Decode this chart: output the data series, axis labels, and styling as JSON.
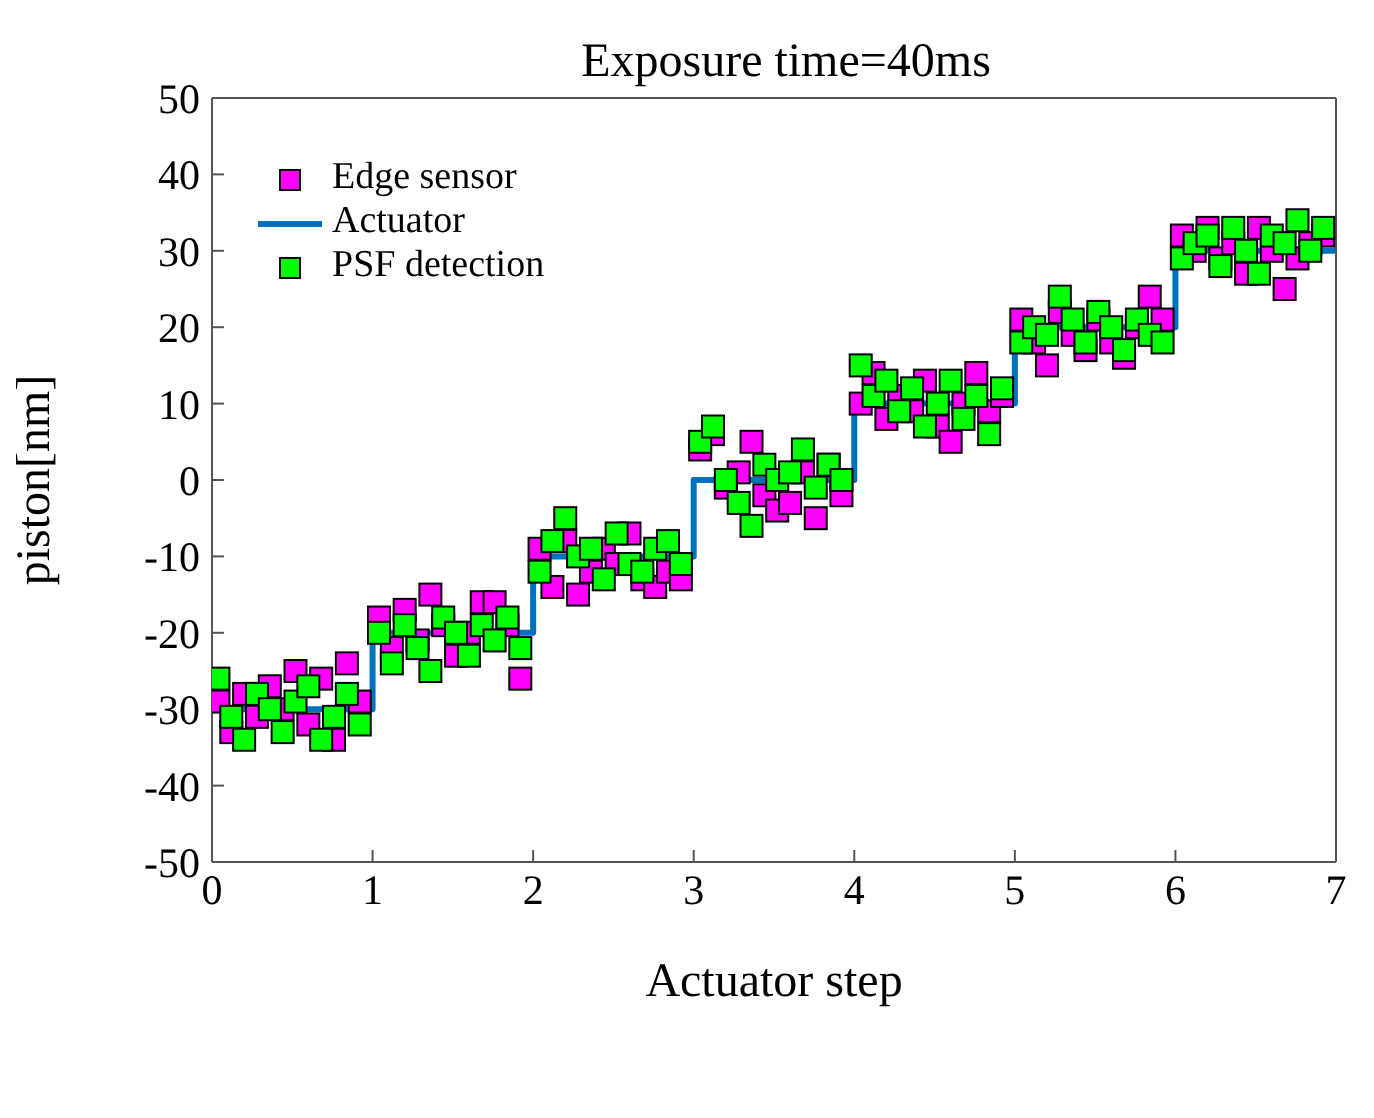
{
  "chart_data": {
    "type": "scatter",
    "title": "Exposure time=40ms",
    "xlabel": "Actuator step",
    "ylabel": "piston[nm]",
    "xlim": [
      0,
      7
    ],
    "xticks": [
      0,
      1,
      2,
      3,
      4,
      5,
      6,
      7
    ],
    "ylim": [
      -50,
      50
    ],
    "yticks": [
      -50,
      -40,
      -30,
      -20,
      -10,
      0,
      10,
      20,
      30,
      40,
      50
    ],
    "legend": "top left",
    "series": [
      {
        "name": "Edge sensor",
        "marker": "square",
        "color": "#ff00ff",
        "values": [
          -29,
          -33,
          -28,
          -31,
          -27,
          -30,
          -25,
          -32,
          -26,
          -34,
          -24,
          -29,
          -18,
          -22,
          -17,
          -21,
          -15,
          -19,
          -23,
          -20,
          -16,
          -16,
          -19,
          -26,
          -9,
          -14,
          -8,
          -15,
          -12,
          -9,
          -11,
          -7,
          -13,
          -14,
          -12,
          -13,
          4,
          6,
          -1,
          1,
          5,
          -2,
          -4,
          -3,
          1,
          -5,
          2,
          -2,
          10,
          14,
          8,
          11,
          9,
          13,
          7,
          5,
          10,
          14,
          9,
          11,
          21,
          18,
          15,
          22,
          19,
          17,
          21,
          18,
          16,
          20,
          24,
          21,
          32,
          30,
          33,
          29,
          31,
          27,
          33,
          30,
          25,
          29,
          31,
          32
        ]
      },
      {
        "name": "Actuator",
        "type": "step",
        "marker": "none",
        "color": "#0072bd",
        "x": [
          0,
          1,
          2,
          3,
          4,
          5,
          6,
          7
        ],
        "values": [
          -30,
          -20,
          -10,
          0,
          10,
          20,
          30,
          30
        ]
      },
      {
        "name": "PSF detection",
        "marker": "square",
        "color": "#00ff00",
        "values": [
          -26,
          -31,
          -34,
          -28,
          -30,
          -33,
          -29,
          -27,
          -34,
          -31,
          -28,
          -32,
          -20,
          -24,
          -19,
          -22,
          -25,
          -18,
          -20,
          -23,
          -19,
          -21,
          -18,
          -22,
          -12,
          -8,
          -5,
          -10,
          -9,
          -13,
          -7,
          -11,
          -12,
          -9,
          -8,
          -11,
          5,
          7,
          0,
          -3,
          -6,
          2,
          0,
          1,
          4,
          -1,
          2,
          0,
          15,
          11,
          13,
          9,
          12,
          7,
          10,
          13,
          8,
          11,
          6,
          12,
          18,
          20,
          19,
          24,
          21,
          18,
          22,
          20,
          17,
          21,
          19,
          18,
          29,
          31,
          32,
          28,
          33,
          30,
          27,
          32,
          31,
          34,
          30,
          33
        ]
      }
    ],
    "x": [
      0.04,
      0.12,
      0.2,
      0.28,
      0.36,
      0.44,
      0.52,
      0.6,
      0.68,
      0.76,
      0.84,
      0.92,
      1.04,
      1.12,
      1.2,
      1.28,
      1.36,
      1.44,
      1.52,
      1.6,
      1.68,
      1.76,
      1.84,
      1.92,
      2.04,
      2.12,
      2.2,
      2.28,
      2.36,
      2.44,
      2.52,
      2.6,
      2.68,
      2.76,
      2.84,
      2.92,
      3.04,
      3.12,
      3.2,
      3.28,
      3.36,
      3.44,
      3.52,
      3.6,
      3.68,
      3.76,
      3.84,
      3.92,
      4.04,
      4.12,
      4.2,
      4.28,
      4.36,
      4.44,
      4.52,
      4.6,
      4.68,
      4.76,
      4.84,
      4.92,
      5.04,
      5.12,
      5.2,
      5.28,
      5.36,
      5.44,
      5.52,
      5.6,
      5.68,
      5.76,
      5.84,
      5.92,
      6.04,
      6.12,
      6.2,
      6.28,
      6.36,
      6.44,
      6.52,
      6.6,
      6.68,
      6.76,
      6.84,
      6.92
    ]
  }
}
